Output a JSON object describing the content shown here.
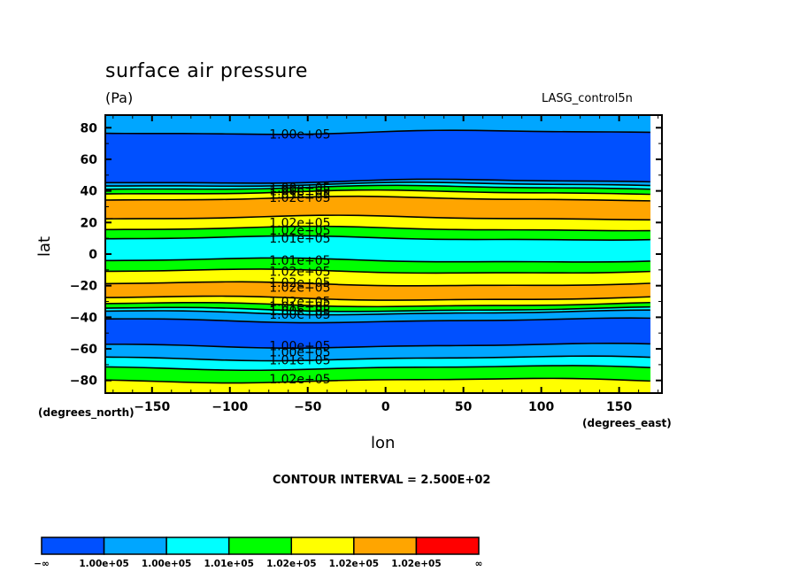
{
  "header": {
    "title": "surface air pressure",
    "units": "(Pa)",
    "dataset": "LASG_control5n"
  },
  "footer": {
    "contour_interval": "CONTOUR INTERVAL = 2.500E+02"
  },
  "colors": {
    "c1": "#0050ff",
    "c2": "#00a6ff",
    "c3": "#00ffff",
    "c4": "#00ff00",
    "c5": "#ffff00",
    "c6": "#ffa500",
    "c7": "#ff0000"
  },
  "chart_data": {
    "type": "heatmap",
    "subtype": "filled-contour",
    "title": "surface air pressure",
    "units": "(Pa)",
    "xlabel": "lon",
    "ylabel": "lat",
    "xunits": "(degrees_east)",
    "yunits": "(degrees_north)",
    "xlim": [
      -180,
      177.5
    ],
    "ylim": [
      -88,
      88
    ],
    "xticks": [
      -150,
      -100,
      -50,
      0,
      50,
      100,
      150
    ],
    "xtick_labels": [
      "−150",
      "−100",
      "−50",
      "0",
      "50",
      "100",
      "150"
    ],
    "yticks": [
      80,
      60,
      40,
      20,
      0,
      -20,
      -40,
      -60,
      -80
    ],
    "ytick_labels": [
      "80",
      "60",
      "40",
      "20",
      "0",
      "−20",
      "−40",
      "−60",
      "−80"
    ],
    "bands": [
      {
        "lat_from": 88,
        "lat_to": 77,
        "level": 2
      },
      {
        "lat_from": 77,
        "lat_to": 46,
        "level": 1
      },
      {
        "lat_from": 46,
        "lat_to": 44,
        "level": 2
      },
      {
        "lat_from": 44,
        "lat_to": 42,
        "level": 3
      },
      {
        "lat_from": 42,
        "lat_to": 39,
        "level": 4
      },
      {
        "lat_from": 39,
        "lat_to": 35,
        "level": 5
      },
      {
        "lat_from": 35,
        "lat_to": 23,
        "level": 6
      },
      {
        "lat_from": 23,
        "lat_to": 16,
        "level": 5
      },
      {
        "lat_from": 16,
        "lat_to": 10,
        "level": 4
      },
      {
        "lat_from": 10,
        "lat_to": -4,
        "level": 3
      },
      {
        "lat_from": -4,
        "lat_to": -11,
        "level": 4
      },
      {
        "lat_from": -11,
        "lat_to": -19,
        "level": 5
      },
      {
        "lat_from": -19,
        "lat_to": -28,
        "level": 6
      },
      {
        "lat_from": -28,
        "lat_to": -32,
        "level": 5
      },
      {
        "lat_from": -32,
        "lat_to": -35,
        "level": 4
      },
      {
        "lat_from": -35,
        "lat_to": -37,
        "level": 3
      },
      {
        "lat_from": -37,
        "lat_to": -42,
        "level": 2
      },
      {
        "lat_from": -42,
        "lat_to": -58,
        "level": 1
      },
      {
        "lat_from": -58,
        "lat_to": -66,
        "level": 2
      },
      {
        "lat_from": -66,
        "lat_to": -72,
        "level": 3
      },
      {
        "lat_from": -72,
        "lat_to": -80,
        "level": 4
      },
      {
        "lat_from": -80,
        "lat_to": -88,
        "level": 5
      }
    ],
    "contour_labels": [
      {
        "lat": 76,
        "text": "1.00e+05"
      },
      {
        "lat": 42,
        "text": "1.00e+05"
      },
      {
        "lat": 40,
        "text": "1.00e+05"
      },
      {
        "lat": 38,
        "text": "1.01e+05"
      },
      {
        "lat": 36,
        "text": "1.02e+05"
      },
      {
        "lat": 20,
        "text": "1.02e+05"
      },
      {
        "lat": 15,
        "text": "1.02e+05"
      },
      {
        "lat": 10,
        "text": "1.01e+05"
      },
      {
        "lat": -4,
        "text": "1.01e+05"
      },
      {
        "lat": -11,
        "text": "1.02e+05"
      },
      {
        "lat": -18,
        "text": "1.02e+05"
      },
      {
        "lat": -21,
        "text": "1.02e+05"
      },
      {
        "lat": -30,
        "text": "1.02e+05"
      },
      {
        "lat": -33,
        "text": "1.01e+05"
      },
      {
        "lat": -36,
        "text": "1.00e+05"
      },
      {
        "lat": -38,
        "text": "1.00e+05"
      },
      {
        "lat": -58,
        "text": "1.00e+05"
      },
      {
        "lat": -62,
        "text": "1.00e+05"
      },
      {
        "lat": -67,
        "text": "1.01e+05"
      },
      {
        "lat": -79,
        "text": "1.02e+05"
      }
    ],
    "colorbar": {
      "labels": [
        "−∞",
        "1.00e+05",
        "1.00e+05",
        "1.01e+05",
        "1.02e+05",
        "1.02e+05",
        "1.02e+05",
        "∞"
      ],
      "levels": [
        1,
        2,
        3,
        4,
        5,
        6,
        7
      ]
    },
    "contour_interval": 250
  }
}
